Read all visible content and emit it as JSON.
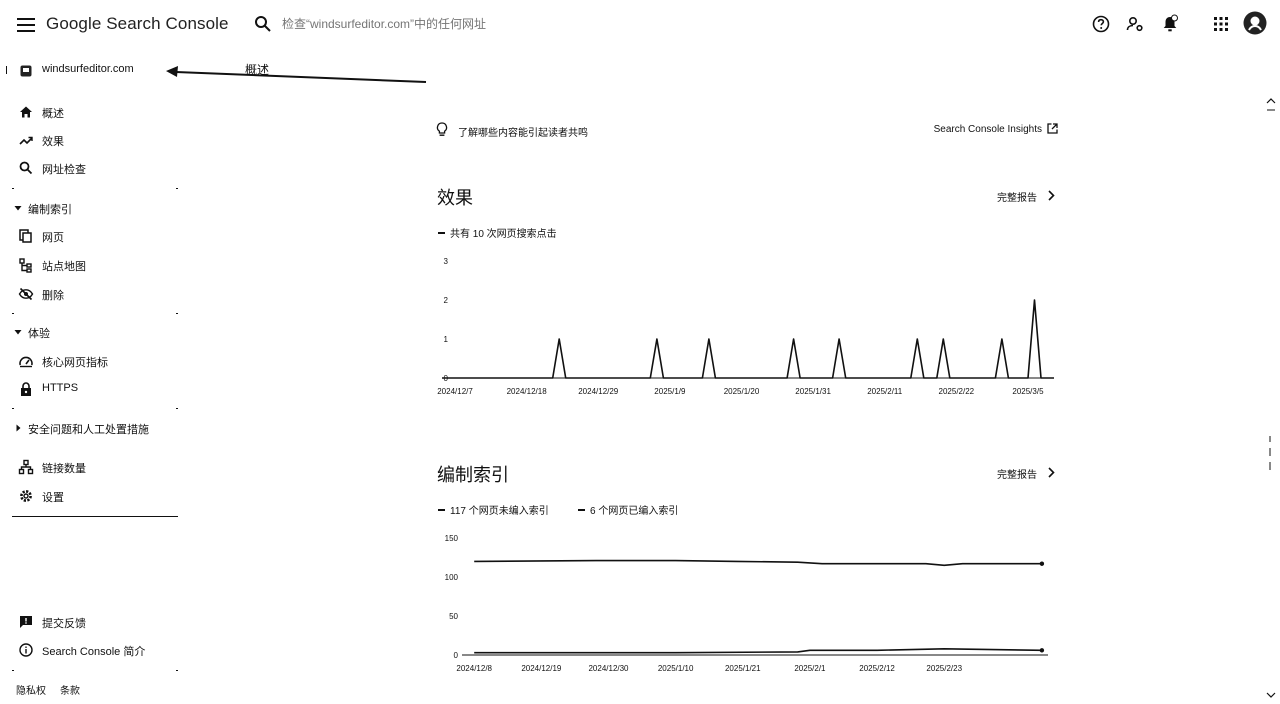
{
  "header": {
    "app_title": "Google Search Console",
    "search_placeholder": "检查“windsurfeditor.com”中的任何网址",
    "icons": [
      "help-icon",
      "manage-users-icon",
      "notifications-icon",
      "apps-grid-icon",
      "account-avatar"
    ]
  },
  "sidebar": {
    "property": "windsurfeditor.com",
    "items": [
      {
        "label": "概述",
        "icon": "home-icon"
      },
      {
        "label": "效果",
        "icon": "trending-up-icon"
      },
      {
        "label": "网址检查",
        "icon": "search-icon"
      }
    ],
    "indexing": {
      "title": "编制索引",
      "items": [
        {
          "label": "网页",
          "icon": "pages-icon"
        },
        {
          "label": "站点地图",
          "icon": "sitemap-icon"
        },
        {
          "label": "删除",
          "icon": "removals-icon"
        }
      ]
    },
    "experience": {
      "title": "体验",
      "items": [
        {
          "label": "核心网页指标",
          "icon": "speed-icon"
        },
        {
          "label": "HTTPS",
          "icon": "lock-icon"
        }
      ]
    },
    "security": {
      "title": "安全问题和人工处置措施"
    },
    "bottom_items": [
      {
        "label": "链接数量",
        "icon": "links-icon"
      },
      {
        "label": "设置",
        "icon": "settings-icon"
      }
    ],
    "footer_items": [
      {
        "label": "提交反馈",
        "icon": "feedback-icon"
      },
      {
        "label": "Search Console 简介",
        "icon": "info-icon"
      }
    ],
    "legal": {
      "privacy": "隐私权",
      "terms": "条款"
    }
  },
  "annotation": {
    "label": "概述"
  },
  "main": {
    "insight": {
      "text": "了解哪些内容能引起读者共鸣",
      "link": "Search Console Insights"
    },
    "performance": {
      "title": "效果",
      "full_report": "完整报告",
      "legend": "共有 10 次网页搜索点击"
    },
    "indexing": {
      "title": "编制索引",
      "full_report": "完整报告",
      "legend_not_indexed": "117 个网页未编入索引",
      "legend_indexed": "6 个网页已编入索引"
    }
  },
  "chart_data": [
    {
      "type": "line",
      "title": "效果",
      "series": [
        {
          "name": "共有 10 次网页搜索点击",
          "color": "#111111",
          "points": [
            [
              "2024-12-05",
              0
            ],
            [
              "2024-12-16",
              0
            ],
            [
              "2024-12-18",
              0
            ],
            [
              "2024-12-22",
              0
            ],
            [
              "2024-12-23",
              1
            ],
            [
              "2024-12-24",
              0
            ],
            [
              "2025-01-06",
              0
            ],
            [
              "2025-01-07",
              1
            ],
            [
              "2025-01-08",
              0
            ],
            [
              "2025-01-14",
              0
            ],
            [
              "2025-01-15",
              1
            ],
            [
              "2025-01-16",
              0
            ],
            [
              "2025-01-27",
              0
            ],
            [
              "2025-01-28",
              1
            ],
            [
              "2025-01-29",
              0
            ],
            [
              "2025-02-03",
              0
            ],
            [
              "2025-02-04",
              1
            ],
            [
              "2025-02-05",
              0
            ],
            [
              "2025-02-15",
              0
            ],
            [
              "2025-02-16",
              1
            ],
            [
              "2025-02-17",
              0
            ],
            [
              "2025-02-19",
              0
            ],
            [
              "2025-02-20",
              1
            ],
            [
              "2025-02-21",
              0
            ],
            [
              "2025-02-28",
              0
            ],
            [
              "2025-03-01",
              1
            ],
            [
              "2025-03-02",
              0
            ],
            [
              "2025-03-05",
              0
            ],
            [
              "2025-03-06",
              2
            ],
            [
              "2025-03-07",
              0
            ],
            [
              "2025-03-09",
              0
            ]
          ]
        }
      ],
      "x_range": [
        "2024-12-05",
        "2025-03-09"
      ],
      "x_ticks": [
        "2024/12/7",
        "2024/12/18",
        "2024/12/29",
        "2025/1/9",
        "2025/1/20",
        "2025/1/31",
        "2025/2/11",
        "2025/2/22",
        "2025/3/5"
      ],
      "y_ticks": [
        0,
        1,
        2,
        3
      ],
      "ylim": [
        0,
        3
      ]
    },
    {
      "type": "line",
      "title": "编制索引",
      "series": [
        {
          "name": "117 个网页未编入索引",
          "color": "#111111",
          "points": [
            [
              "2024-12-08",
              120
            ],
            [
              "2024-12-28",
              121
            ],
            [
              "2025-01-10",
              121
            ],
            [
              "2025-01-20",
              120
            ],
            [
              "2025-01-30",
              119
            ],
            [
              "2025-02-03",
              117
            ],
            [
              "2025-02-08",
              117
            ],
            [
              "2025-02-20",
              117
            ],
            [
              "2025-02-23",
              115
            ],
            [
              "2025-02-26",
              117
            ],
            [
              "2025-03-11",
              117
            ]
          ]
        },
        {
          "name": "6 个网页已编入索引",
          "color": "#111111",
          "points": [
            [
              "2024-12-08",
              3
            ],
            [
              "2024-12-28",
              3
            ],
            [
              "2025-01-10",
              3
            ],
            [
              "2025-01-30",
              4
            ],
            [
              "2025-02-01",
              6
            ],
            [
              "2025-02-12",
              6
            ],
            [
              "2025-02-23",
              8
            ],
            [
              "2025-03-11",
              6
            ]
          ]
        }
      ],
      "x_range": [
        "2024-12-06",
        "2025-03-12"
      ],
      "x_ticks": [
        "2024/12/8",
        "2024/12/19",
        "2024/12/30",
        "2025/1/10",
        "2025/1/21",
        "2025/2/1",
        "2025/2/12",
        "2025/2/23"
      ],
      "y_ticks": [
        0,
        50,
        100,
        150
      ],
      "ylim": [
        0,
        150
      ]
    }
  ]
}
